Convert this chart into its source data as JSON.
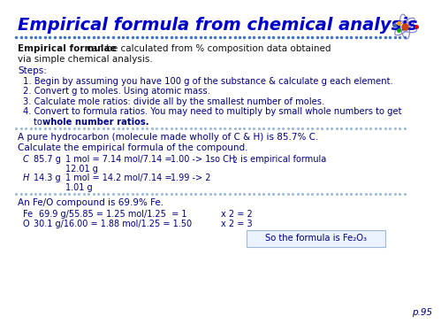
{
  "title": "Empirical formula from chemical analysis",
  "bg_color": "#FFFFFF",
  "text_dark": "#000080",
  "text_black": "#1a1a2e",
  "dot_color": "#4472C4",
  "dot_color2": "#9DB8D9",
  "page_num": "p.95"
}
